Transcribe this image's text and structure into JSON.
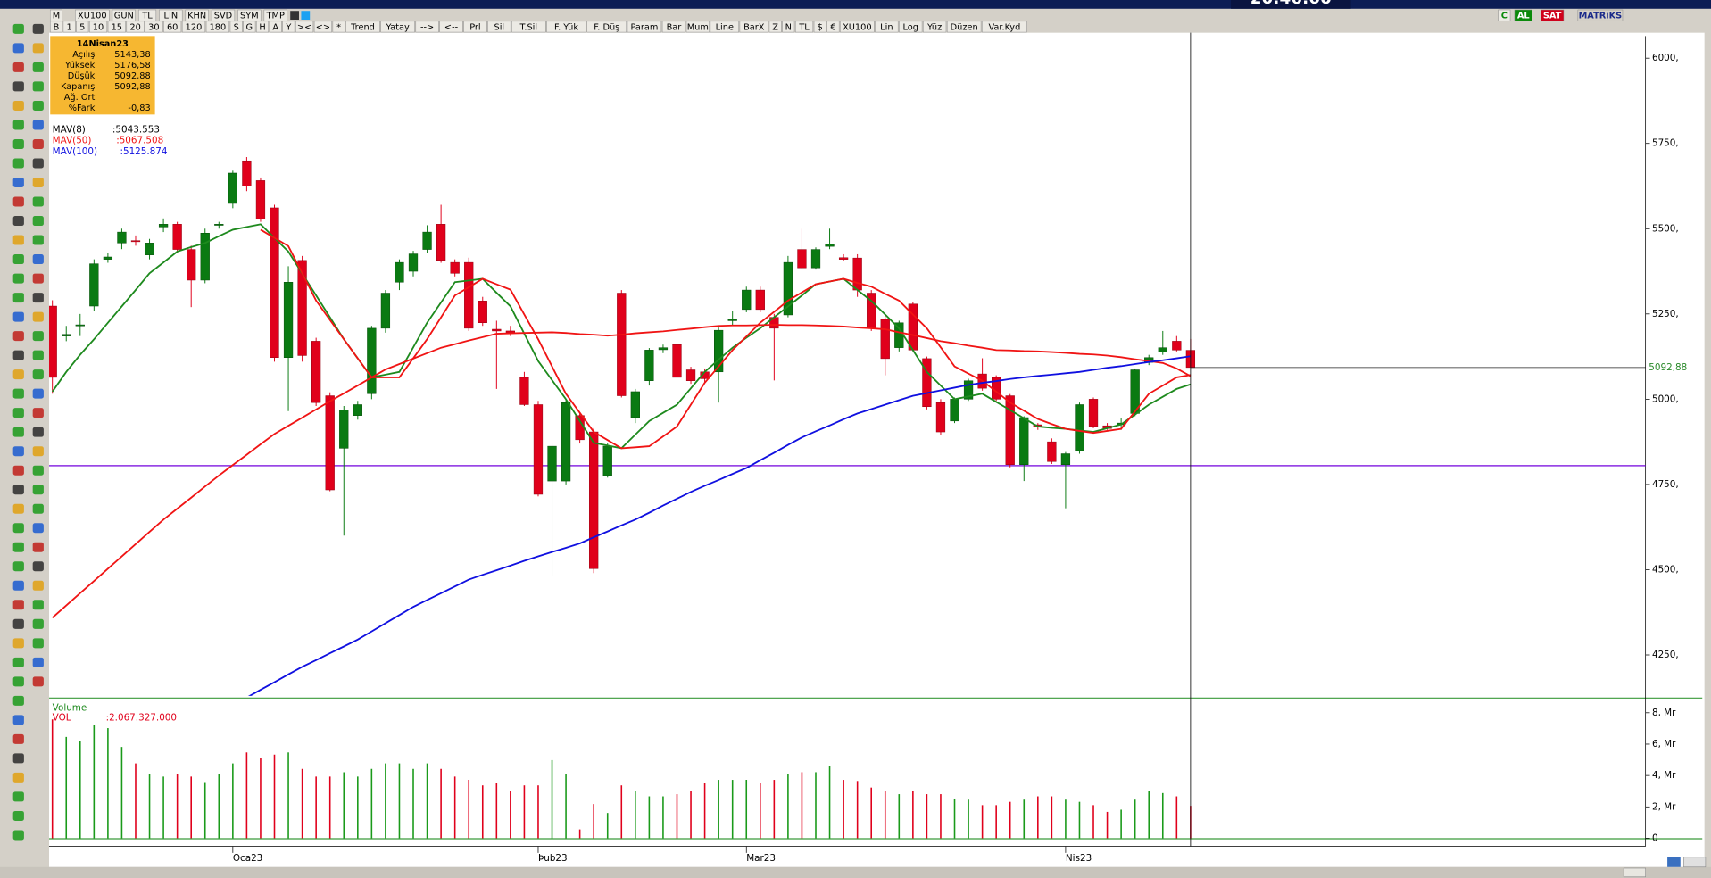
{
  "clock": "20:46:00",
  "toolbar": {
    "row1": [
      "M",
      "XU100",
      "GUN",
      "TL",
      "LIN",
      "KHN",
      "SVD",
      "SYM",
      "TMP"
    ],
    "row1_right": [
      "C",
      "AL",
      "SAT",
      "MATRiKS"
    ],
    "row2": [
      "B",
      "1",
      "5",
      "10",
      "15",
      "20",
      "30",
      "60",
      "120",
      "180",
      "S",
      "G",
      "H",
      "A",
      "Y",
      "><",
      "<>",
      "*",
      "Trend",
      "Yatay",
      "-->",
      "<--",
      "Prl",
      "Sil",
      "T.Sil",
      "F. Yük",
      "F. Düş",
      "Param",
      "Bar",
      "Mum",
      "Line",
      "BarX",
      "Z",
      "N",
      "TL",
      "$",
      "€",
      "XU100",
      "Lin",
      "Log",
      "Yüz",
      "Düzen",
      "Var.Kyd"
    ]
  },
  "info_box": {
    "date": "14Nisan23",
    "rows": [
      {
        "label": "Açılış",
        "value": "5143,38"
      },
      {
        "label": "Yüksek",
        "value": "5176,58"
      },
      {
        "label": "Düşük",
        "value": "5092,88"
      },
      {
        "label": "Kapanış",
        "value": "5092,88"
      },
      {
        "label": "Ağ. Ort"
      },
      {
        "label": "%Fark",
        "value": "-0,83"
      }
    ]
  },
  "chart_data": [
    {
      "type": "candlestick",
      "categories": [
        null,
        null,
        null,
        null,
        null,
        null,
        null,
        null,
        null,
        null,
        null,
        null,
        null,
        "Oca23",
        null,
        null,
        null,
        null,
        null,
        null,
        null,
        null,
        null,
        null,
        null,
        null,
        null,
        null,
        null,
        null,
        null,
        null,
        null,
        null,
        null,
        "Þub23",
        null,
        null,
        null,
        null,
        null,
        null,
        null,
        null,
        null,
        null,
        null,
        null,
        null,
        null,
        "Mar23",
        null,
        null,
        null,
        null,
        null,
        null,
        null,
        null,
        null,
        null,
        null,
        null,
        null,
        null,
        null,
        null,
        null,
        null,
        null,
        null,
        null,
        null,
        "Nis23",
        null,
        null,
        null,
        null,
        null,
        null,
        null,
        null,
        null
      ],
      "open": [
        5273,
        5185,
        5215,
        5273,
        5410,
        5458,
        5465,
        5423,
        5505,
        5513,
        5439,
        5349,
        5510,
        5574,
        5699,
        5641,
        5561,
        5122,
        5407,
        5170,
        5010,
        4856,
        4952,
        5016,
        5208,
        5343,
        5375,
        5439,
        5513,
        5401,
        5401,
        5288,
        5205,
        5200,
        5064,
        4984,
        4760,
        4760,
        4952,
        4904,
        4776,
        5311,
        4946,
        5054,
        5145,
        5160,
        5086,
        5080,
        5080,
        5230,
        5263,
        5320,
        5240,
        5247,
        5439,
        5385,
        5448,
        5415,
        5414,
        5311,
        5234,
        5151,
        5279,
        5119,
        4990,
        4936,
        5000,
        5074,
        5064,
        5010,
        4808,
        4925,
        4875,
        4808,
        4849,
        5000,
        4922,
        4925,
        4958,
        5108,
        5138,
        5170,
        5143.38
      ],
      "high": [
        5290,
        5215,
        5250,
        5410,
        5430,
        5500,
        5480,
        5470,
        5530,
        5520,
        5450,
        5500,
        5520,
        5670,
        5710,
        5650,
        5570,
        5390,
        5420,
        5180,
        5020,
        4980,
        4995,
        5215,
        5320,
        5410,
        5435,
        5510,
        5570,
        5410,
        5415,
        5300,
        5230,
        5215,
        5080,
        4995,
        4870,
        5000,
        4960,
        4915,
        4870,
        5320,
        5030,
        5150,
        5160,
        5170,
        5095,
        5090,
        5210,
        5260,
        5330,
        5330,
        5250,
        5420,
        5500,
        5445,
        5500,
        5425,
        5425,
        5320,
        5245,
        5230,
        5285,
        5125,
        5000,
        5005,
        5060,
        5120,
        5070,
        5015,
        4950,
        4930,
        4885,
        4845,
        4990,
        5005,
        4930,
        4945,
        5090,
        5130,
        5200,
        5185,
        5176.58
      ],
      "low": [
        5016,
        5170,
        5185,
        5260,
        5400,
        5440,
        5450,
        5410,
        5490,
        5430,
        5270,
        5340,
        5500,
        5560,
        5610,
        5520,
        5110,
        4965,
        5110,
        4980,
        4730,
        4600,
        4940,
        5000,
        5195,
        5320,
        5360,
        5430,
        5400,
        5360,
        5200,
        5215,
        5030,
        5185,
        4980,
        4715,
        4480,
        4750,
        4870,
        4490,
        4770,
        5005,
        4930,
        5040,
        5135,
        5055,
        5045,
        5050,
        4990,
        5215,
        5255,
        5255,
        5055,
        5240,
        5380,
        5380,
        5440,
        5405,
        5300,
        5200,
        5070,
        5140,
        5140,
        4970,
        4895,
        4930,
        4995,
        5025,
        4995,
        4800,
        4760,
        4910,
        4810,
        4680,
        4840,
        4915,
        4910,
        4910,
        4950,
        5100,
        5130,
        5140,
        5092.88
      ],
      "close": [
        5064,
        5190,
        5218,
        5397,
        5417,
        5490,
        5462,
        5458,
        5513,
        5439,
        5349,
        5487,
        5513,
        5663,
        5625,
        5529,
        5122,
        5343,
        5128,
        4990,
        4734,
        4968,
        4984,
        5208,
        5311,
        5401,
        5426,
        5490,
        5407,
        5369,
        5208,
        5224,
        5200,
        5195,
        4984,
        4721,
        4862,
        4990,
        4881,
        4503,
        4862,
        5010,
        5022,
        5144,
        5151,
        5064,
        5054,
        5060,
        5202,
        5234,
        5320,
        5263,
        5208,
        5401,
        5385,
        5439,
        5455,
        5410,
        5320,
        5208,
        5119,
        5224,
        5144,
        4978,
        4904,
        5000,
        5054,
        5032,
        5000,
        4808,
        4946,
        4918,
        4817,
        4840,
        4984,
        4920,
        4914,
        4930,
        5086,
        5122,
        5151,
        5144,
        5092.88
      ],
      "up_color": "#0a7a12",
      "down_color": "#e0001b",
      "series": [
        {
          "name": "MAV(8)",
          "value_label": ":5043.553",
          "color": "#1e8a1e",
          "values": [
            5022,
            5080,
            5130,
            5176,
            5224,
            5272,
            5320,
            5369,
            5401,
            5433,
            5446,
            5458,
            5478,
            5497,
            5505,
            5513,
            5473,
            5433,
            5368,
            5304,
            5240,
            5176,
            5120,
            5064,
            5072,
            5080,
            5152,
            5224,
            5284,
            5343,
            5348,
            5353,
            5312,
            5272,
            5192,
            5112,
            5056,
            5000,
            4936,
            4872,
            4864,
            4856,
            4896,
            4936,
            4960,
            4984,
            5032,
            5080,
            5116,
            5151,
            5180,
            5208,
            5240,
            5272,
            5304,
            5337,
            5345,
            5353,
            5320,
            5288,
            5248,
            5208,
            5144,
            5080,
            5040,
            5000,
            5008,
            5016,
            4992,
            4968,
            4944,
            4920,
            4916,
            4913,
            4908,
            4904,
            4915,
            4926,
            4955,
            4984,
            5007,
            5030,
            5043.553
          ]
        },
        {
          "color": "#f01414",
          "values": [
            null,
            null,
            null,
            null,
            null,
            null,
            null,
            null,
            null,
            null,
            null,
            null,
            null,
            null,
            null,
            5497,
            5473,
            5449,
            5369,
            5289,
            5232,
            5176,
            5120,
            5064,
            5064,
            5064,
            5120,
            5176,
            5240,
            5304,
            5328,
            5353,
            5337,
            5321,
            5248,
            5176,
            5096,
            5016,
            4960,
            4904,
            4880,
            4856,
            4859,
            4862,
            4891,
            4920,
            4984,
            5048,
            5096,
            5144,
            5184,
            5224,
            5256,
            5289,
            5313,
            5337,
            5345,
            5353,
            5341,
            5330,
            5309,
            5289,
            5248,
            5208,
            5152,
            5096,
            5075,
            5054,
            5022,
            4990,
            4966,
            4942,
            4927,
            4913,
            4907,
            4901,
            4907,
            4913,
            4964,
            5016,
            5040,
            5064,
            5071
          ]
        },
        {
          "name": "MAV(50)",
          "value_label": ":5067.508",
          "color": "#f01414",
          "values": [
            4359,
            4395,
            4431,
            4467,
            4503,
            4539,
            4575,
            4611,
            4647,
            4679,
            4711,
            4744,
            4776,
            4807,
            4837,
            4868,
            4898,
            4922,
            4946,
            4970,
            4994,
            5017,
            5040,
            5064,
            5087,
            5103,
            5119,
            5135,
            5151,
            5161,
            5172,
            5182,
            5192,
            5193,
            5194,
            5195,
            5196,
            5194,
            5191,
            5189,
            5186,
            5189,
            5193,
            5196,
            5199,
            5203,
            5207,
            5211,
            5215,
            5216,
            5216,
            5217,
            5218,
            5217,
            5217,
            5216,
            5215,
            5213,
            5210,
            5208,
            5205,
            5196,
            5188,
            5179,
            5170,
            5164,
            5157,
            5151,
            5144,
            5143,
            5141,
            5140,
            5138,
            5136,
            5133,
            5131,
            5128,
            5123,
            5117,
            5112,
            5106,
            5090,
            5067.508
          ]
        },
        {
          "name": "MAV(100)",
          "value_label": ":5125.874",
          "color": "#1010e0",
          "values": [
            null,
            null,
            null,
            null,
            null,
            null,
            null,
            null,
            null,
            null,
            null,
            null,
            null,
            null,
            4125,
            4148,
            4170,
            4193,
            4215,
            4235,
            4255,
            4275,
            4295,
            4319,
            4343,
            4367,
            4391,
            4411,
            4431,
            4451,
            4471,
            4485,
            4498,
            4512,
            4526,
            4539,
            4552,
            4564,
            4577,
            4595,
            4612,
            4630,
            4647,
            4667,
            4688,
            4708,
            4728,
            4746,
            4763,
            4781,
            4798,
            4821,
            4843,
            4866,
            4888,
            4906,
            4923,
            4941,
            4958,
            4971,
            4984,
            4997,
            5010,
            5018,
            5026,
            5034,
            5042,
            5048,
            5053,
            5059,
            5064,
            5068,
            5072,
            5076,
            5080,
            5086,
            5092,
            5097,
            5103,
            5109,
            5114,
            5120,
            5125.874
          ]
        }
      ],
      "hline": {
        "value": 4805,
        "color": "#8a2be2"
      },
      "last_price_label": "5092,88",
      "ylim": [
        4130,
        6065
      ],
      "yticks": [
        {
          "value": 4250,
          "label": "4250,"
        },
        {
          "value": 4500,
          "label": "4500,"
        },
        {
          "value": 4750,
          "label": "4750,"
        },
        {
          "value": 5000,
          "label": "5000,"
        },
        {
          "value": 5250,
          "label": "5250,"
        },
        {
          "value": 5500,
          "label": "5500,"
        },
        {
          "value": 5750,
          "label": "5750,"
        },
        {
          "value": 6000,
          "label": "6000,"
        }
      ]
    },
    {
      "type": "bar",
      "title": "Volume",
      "series_name": "VOL",
      "value_label": ":2.067.327.000",
      "values": [
        7.58,
        6.46,
        6.18,
        7.23,
        7.02,
        5.82,
        4.77,
        4.07,
        3.93,
        4.07,
        3.93,
        3.58,
        4.07,
        4.77,
        5.47,
        5.12,
        5.33,
        5.47,
        4.42,
        3.93,
        3.93,
        4.21,
        3.93,
        4.42,
        4.77,
        4.77,
        4.42,
        4.77,
        4.42,
        3.93,
        3.72,
        3.37,
        3.51,
        3.02,
        3.37,
        3.37,
        4.98,
        4.07,
        0.56,
        2.18,
        1.61,
        3.37,
        3.02,
        2.67,
        2.67,
        2.81,
        3.02,
        3.51,
        3.72,
        3.72,
        3.72,
        3.51,
        3.72,
        4.07,
        4.21,
        4.21,
        4.63,
        3.72,
        3.65,
        3.23,
        3.02,
        2.81,
        3.02,
        2.81,
        2.81,
        2.53,
        2.46,
        2.11,
        2.11,
        2.32,
        2.46,
        2.67,
        2.67,
        2.46,
        2.32,
        2.11,
        1.68,
        1.82,
        2.46,
        3.02,
        2.88,
        2.67,
        2.067327
      ],
      "ylim": [
        -0.1,
        8.8
      ],
      "yticks": [
        0,
        {
          "value": 2,
          "label": "2, Mr"
        },
        {
          "value": 4,
          "label": "4, Mr"
        },
        {
          "value": 6,
          "label": "6, Mr"
        },
        {
          "value": 8,
          "label": "8, Mr"
        }
      ]
    }
  ]
}
